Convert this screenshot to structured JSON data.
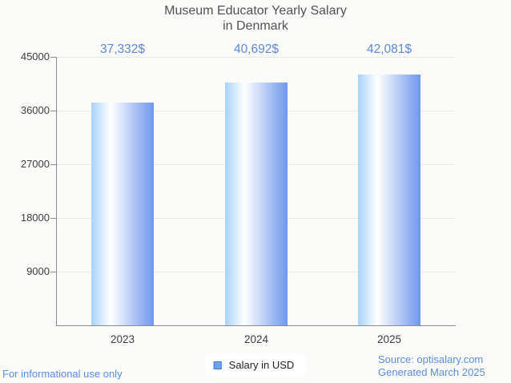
{
  "title": {
    "line1": "Museum Educator Yearly Salary",
    "line2": "in Denmark"
  },
  "chart_data": {
    "type": "bar",
    "title": "Museum Educator Yearly Salary in Denmark",
    "categories": [
      "2023",
      "2024",
      "2025"
    ],
    "values": [
      37332,
      40692,
      42081
    ],
    "value_labels": [
      "37,332$",
      "40,692$",
      "42,081$"
    ],
    "series_name": "Salary in USD",
    "xlabel": "",
    "ylabel": "",
    "ylim": [
      0,
      45000
    ],
    "yticks": [
      9000,
      18000,
      27000,
      36000,
      45000
    ],
    "ytick_labels": [
      "9000",
      "18000",
      "27000",
      "36000",
      "45000"
    ],
    "grid": true,
    "legend_position": "bottom-center"
  },
  "legend": {
    "label": "Salary in USD",
    "swatch_color": "#6da1ef",
    "swatch_border": "#3e7ad6"
  },
  "footer": {
    "left": "For informational use only",
    "source": "Source: optisalary.com",
    "generated": "Generated March 2025"
  },
  "colors": {
    "background": "#fbfbf9",
    "title_text": "#515151",
    "axis_line": "#8a8a8a",
    "gridline": "#e8e8e5",
    "tick_label": "#3d3d3d",
    "value_label": "#5c87d7",
    "footer_text": "#5b8be0",
    "bar_gradient_left": "#a7d2fb",
    "bar_gradient_mid": "#ffffff",
    "bar_gradient_right": "#6e97ee"
  }
}
